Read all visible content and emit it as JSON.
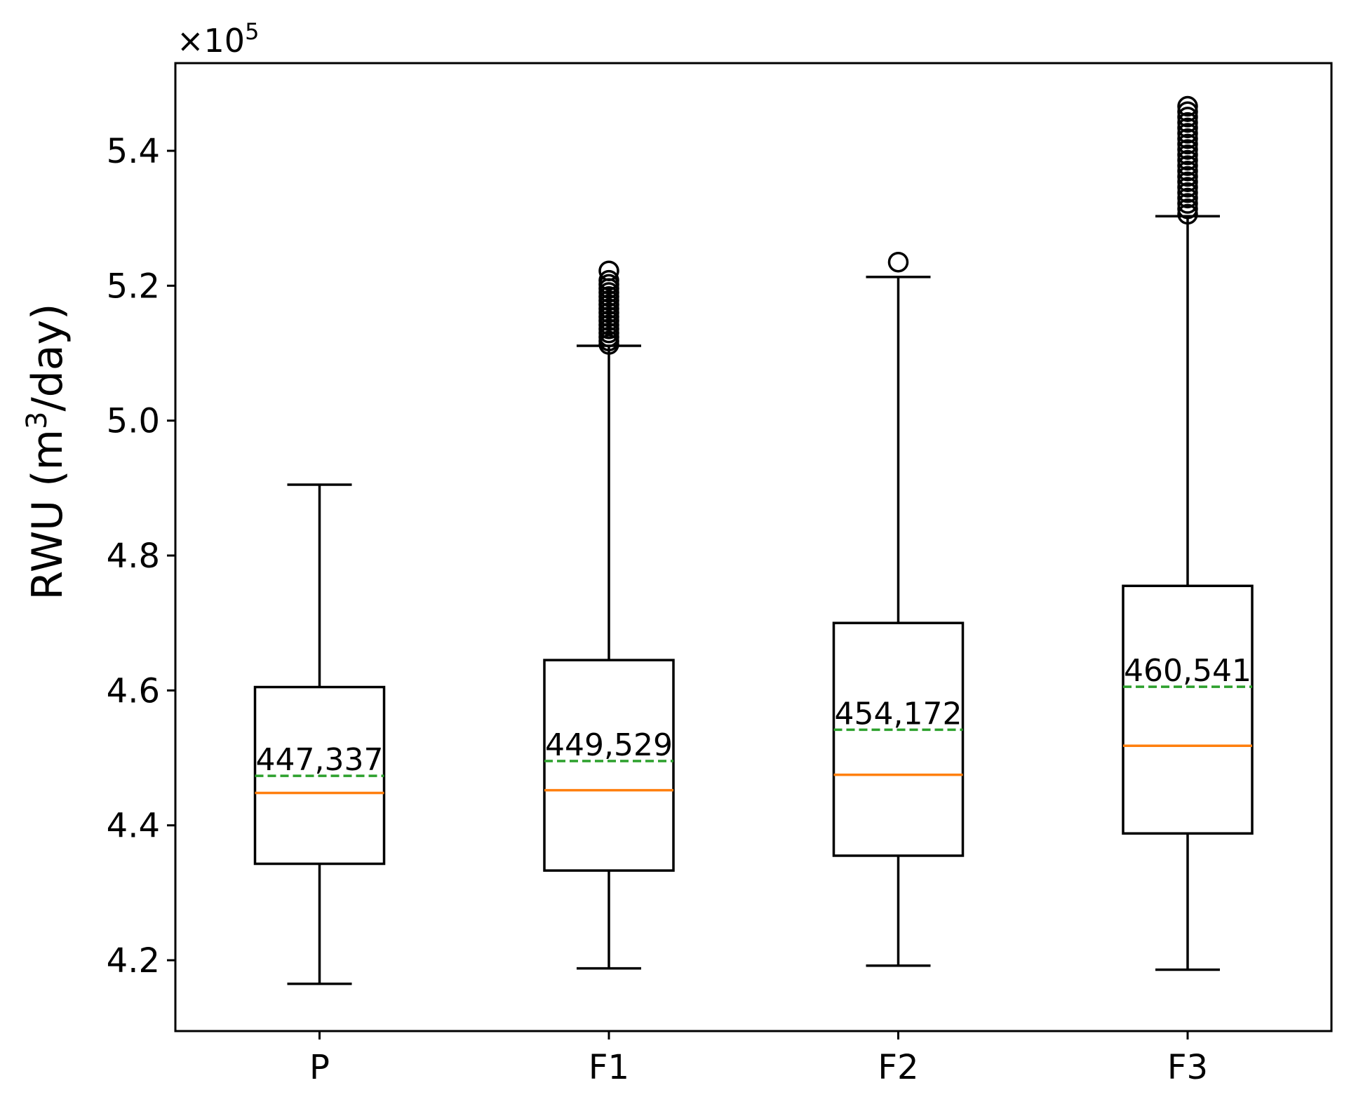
{
  "chart_data": {
    "type": "box",
    "ylabel": "RWU (m",
    "ylabel_sup": "3",
    "ylabel_tail": "/day)",
    "offset_text": "×10",
    "offset_exp": "5",
    "ylim": [
      4.095,
      5.53
    ],
    "yticks": [
      4.2,
      4.4,
      4.6,
      4.8,
      5.0,
      5.2,
      5.4
    ],
    "ytick_labels": [
      "4.2",
      "4.4",
      "4.6",
      "4.8",
      "5.0",
      "5.2",
      "5.4"
    ],
    "categories": [
      "P",
      "F1",
      "F2",
      "F3"
    ],
    "boxes": [
      {
        "name": "P",
        "whisker_low": 4.165,
        "q1": 4.343,
        "median": 4.448,
        "q3": 4.605,
        "whisker_high": 4.905,
        "mean": 4.47337,
        "mean_label": "447,337",
        "outliers": []
      },
      {
        "name": "F1",
        "whisker_low": 4.188,
        "q1": 4.333,
        "median": 4.452,
        "q3": 4.645,
        "whisker_high": 5.111,
        "mean": 4.49529,
        "mean_label": "449,529",
        "outliers": [
          5.113,
          5.118,
          5.124,
          5.13,
          5.136,
          5.142,
          5.148,
          5.154,
          5.16,
          5.166,
          5.172,
          5.178,
          5.184,
          5.19,
          5.196,
          5.202,
          5.208,
          5.222
        ]
      },
      {
        "name": "F2",
        "whisker_low": 4.192,
        "q1": 4.355,
        "median": 4.475,
        "q3": 4.7,
        "whisker_high": 5.213,
        "mean": 4.54172,
        "mean_label": "454,172",
        "outliers": [
          5.235
        ]
      },
      {
        "name": "F3",
        "whisker_low": 4.186,
        "q1": 4.388,
        "median": 4.518,
        "q3": 4.755,
        "whisker_high": 5.303,
        "mean": 4.60541,
        "mean_label": "460,541",
        "outliers": [
          5.306,
          5.314,
          5.322,
          5.33,
          5.338,
          5.346,
          5.354,
          5.362,
          5.37,
          5.378,
          5.386,
          5.394,
          5.402,
          5.41,
          5.418,
          5.426,
          5.434,
          5.442,
          5.45,
          5.458,
          5.466
        ]
      }
    ],
    "colors": {
      "median": "#ff7f0e",
      "mean": "#2ca02c",
      "box": "#000000"
    }
  }
}
